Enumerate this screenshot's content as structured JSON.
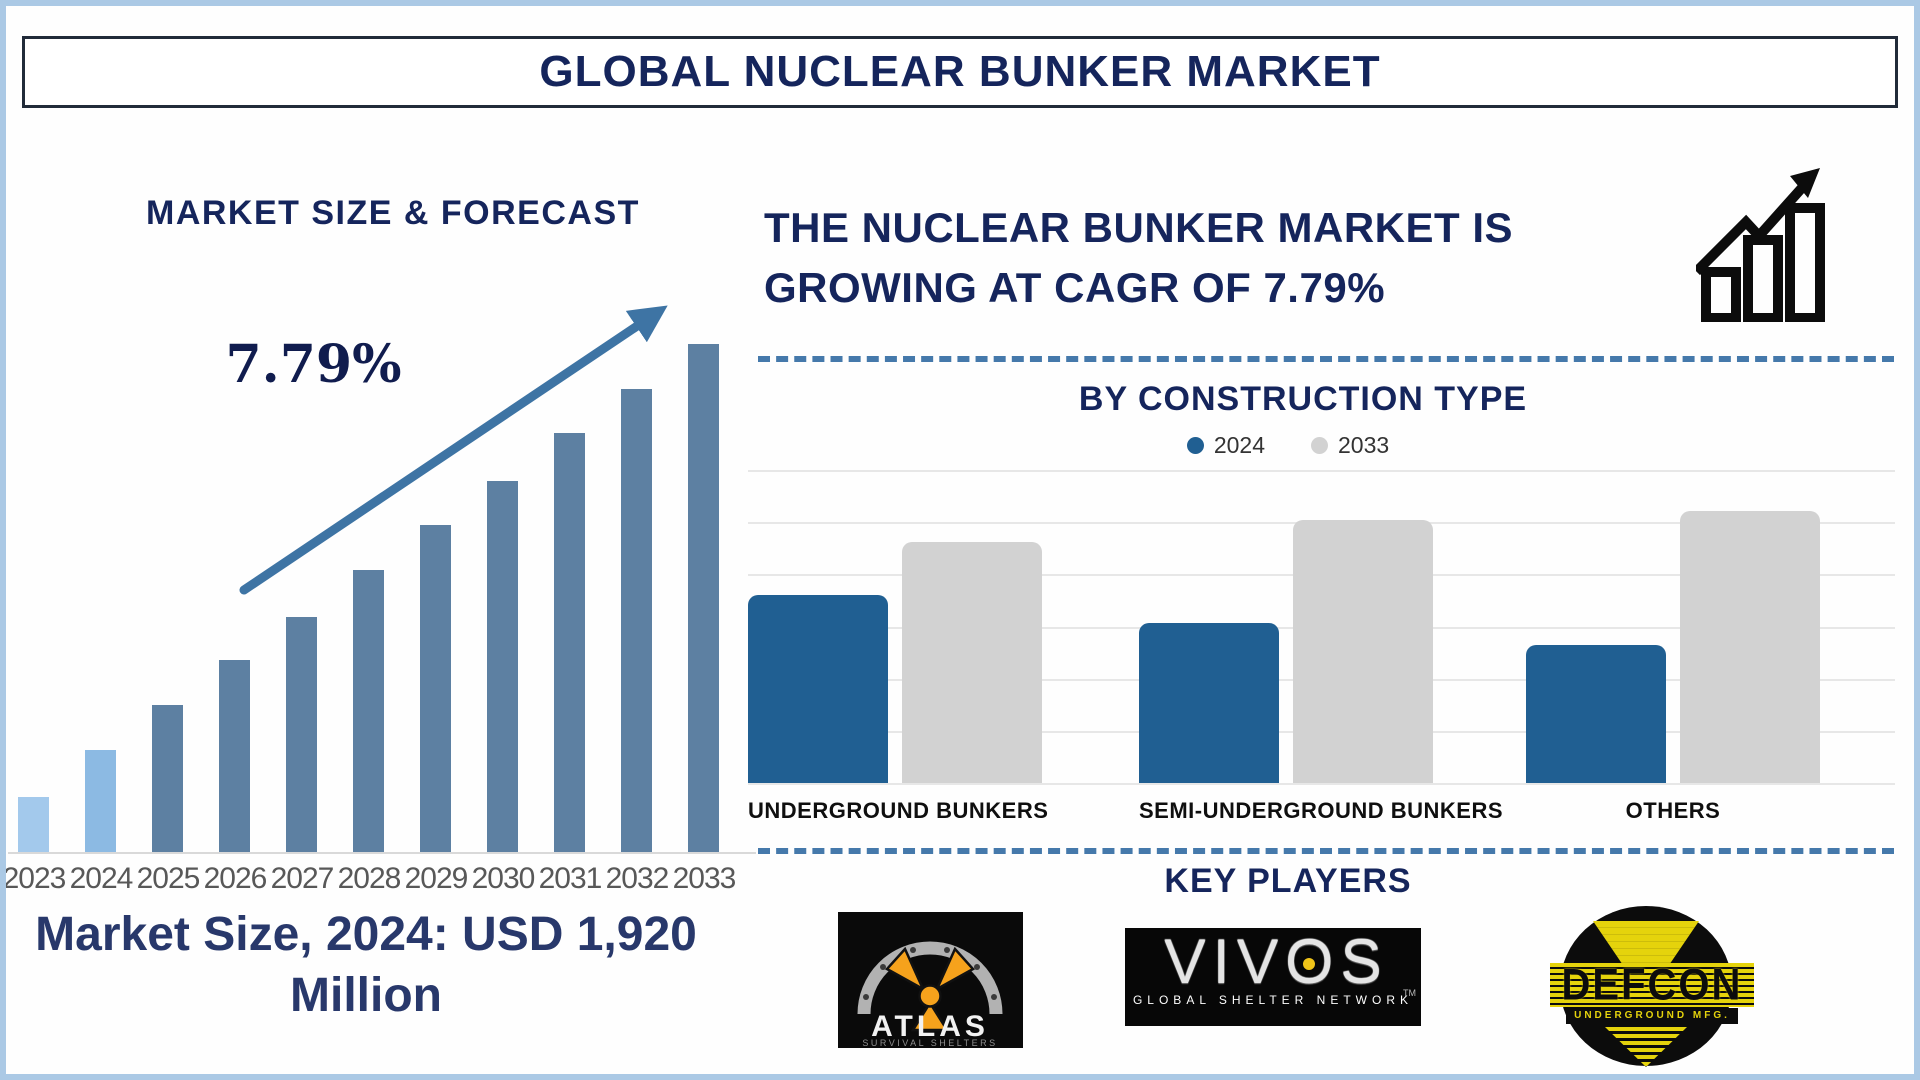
{
  "title": "GLOBAL NUCLEAR BUNKER MARKET",
  "left": {
    "section_title": "MARKET SIZE & FORECAST",
    "cagr_label": "7.79%",
    "market_size_caption": "Market Size, 2024: USD 1,920 Million"
  },
  "right": {
    "headline": "THE NUCLEAR BUNKER MARKET IS GROWING AT CAGR OF 7.79%",
    "construction_title": "BY CONSTRUCTION TYPE",
    "legend": [
      {
        "label": "2024",
        "color": "#205f92"
      },
      {
        "label": "2033",
        "color": "#d2d2d2"
      }
    ],
    "key_players_title": "KEY PLAYERS",
    "logos": {
      "atlas": {
        "name": "ATLAS",
        "subtitle": "SURVIVAL SHELTERS"
      },
      "vivos": {
        "name": "VIVOS",
        "subtitle": "GLOBAL SHELTER NETWORK",
        "tm": "TM"
      },
      "defcon": {
        "name": "DEFCON",
        "subtitle": "UNDERGROUND MFG."
      }
    }
  },
  "colors": {
    "navy": "#15255c",
    "light_bar": "#9cc4ea",
    "steel_bar": "#5d80a2",
    "chart_blue": "#205f92",
    "chart_gray": "#d2d2d2",
    "arrow": "#3e74a4",
    "dash": "#4579ab"
  },
  "chart_data": [
    {
      "type": "bar",
      "title": "MARKET SIZE & FORECAST",
      "categories": [
        "2023",
        "2024",
        "2025",
        "2026",
        "2027",
        "2028",
        "2029",
        "2030",
        "2031",
        "2032",
        "2033"
      ],
      "values_relative_pct": [
        10.8,
        20.1,
        28.9,
        37.8,
        46.3,
        55.5,
        64.4,
        73.0,
        82.5,
        91.1,
        100
      ],
      "bar_colors": [
        "#a3c9ec",
        "#8cbae3",
        "#5d80a2",
        "#5d80a2",
        "#5d80a2",
        "#5d80a2",
        "#5d80a2",
        "#5d80a2",
        "#5d80a2",
        "#5d80a2",
        "#5d80a2"
      ],
      "anchor": {
        "year": "2024",
        "value_usd_million": 1920,
        "cagr_pct": 7.79
      },
      "xlabel": "",
      "ylabel": "",
      "axis_values_shown": false,
      "grid": false
    },
    {
      "type": "bar",
      "title": "BY CONSTRUCTION TYPE",
      "categories": [
        "UNDERGROUND BUNKERS",
        "SEMI-UNDERGROUND BUNKERS",
        "OTHERS"
      ],
      "series": [
        {
          "name": "2024",
          "color": "#205f92",
          "values_relative_pct": [
            60,
            51,
            44
          ]
        },
        {
          "name": "2033",
          "color": "#d2d2d2",
          "values_relative_pct": [
            77,
            84,
            87
          ]
        }
      ],
      "grid": true,
      "gridline_count": 7,
      "legend_position": "top",
      "axis_values_shown": false
    }
  ]
}
